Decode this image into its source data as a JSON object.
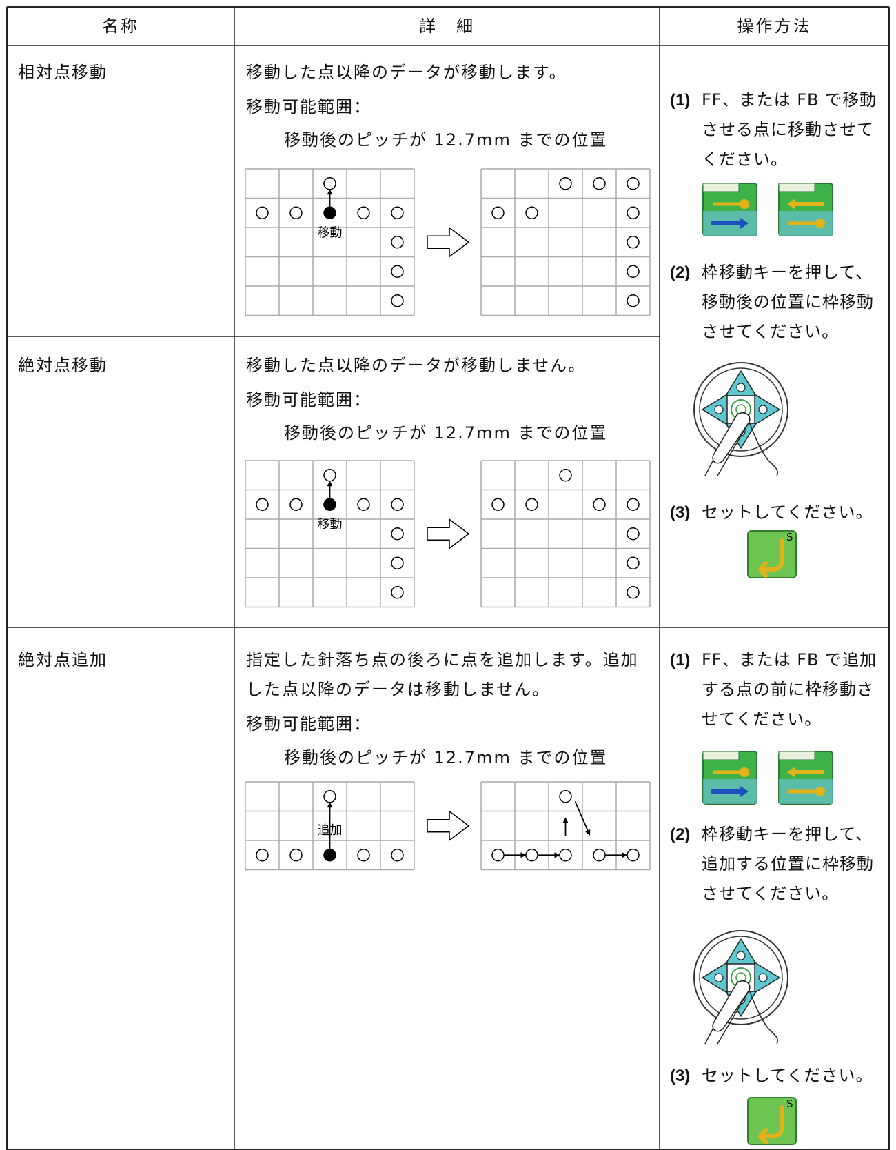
{
  "header": [
    "名称",
    "詳　細",
    "操作方法"
  ],
  "rows": [
    {
      "name": "相対点移動",
      "description": "移動した点以降のデータが移動します。",
      "range_label": "移動可能範囲：",
      "range_text": "移動後のピッチが 12.7mm までの位置",
      "diagram_label": "移動"
    },
    {
      "name": "絶対点移動",
      "description": "移動した点以降のデータが移動しません。",
      "range_label": "移動可能範囲：",
      "range_text": "移動後のピッチが 12.7mm までの位置",
      "diagram_label": "移動"
    },
    {
      "name": "絶対点追加",
      "description": "指定した針落ち点の後ろに点を追加します。追加した点以降のデータは移動しません。",
      "range_label": "移動可能範囲：",
      "range_text": "移動後のピッチが 12.7mm までの位置",
      "diagram_label": "追加"
    }
  ],
  "operations": [
    {
      "steps": [
        {
          "number": "(1)",
          "text": "FF、または FB で移動させる点に移動させてください。"
        },
        {
          "number": "(2)",
          "text": "枠移動キーを押して、移動後の位置に枠移動させてください。"
        },
        {
          "number": "(3)",
          "text": "セットしてください。"
        }
      ]
    },
    {
      "steps": [
        {
          "number": "(1)",
          "text": "FF、または FB で追加する点の前に枠移動させてください。"
        },
        {
          "number": "(2)",
          "text": "枠移動キーを押して、追加する位置に枠移動させてください。"
        },
        {
          "number": "(3)",
          "text": "セットしてください。"
        }
      ]
    }
  ],
  "set_key_label": "S"
}
